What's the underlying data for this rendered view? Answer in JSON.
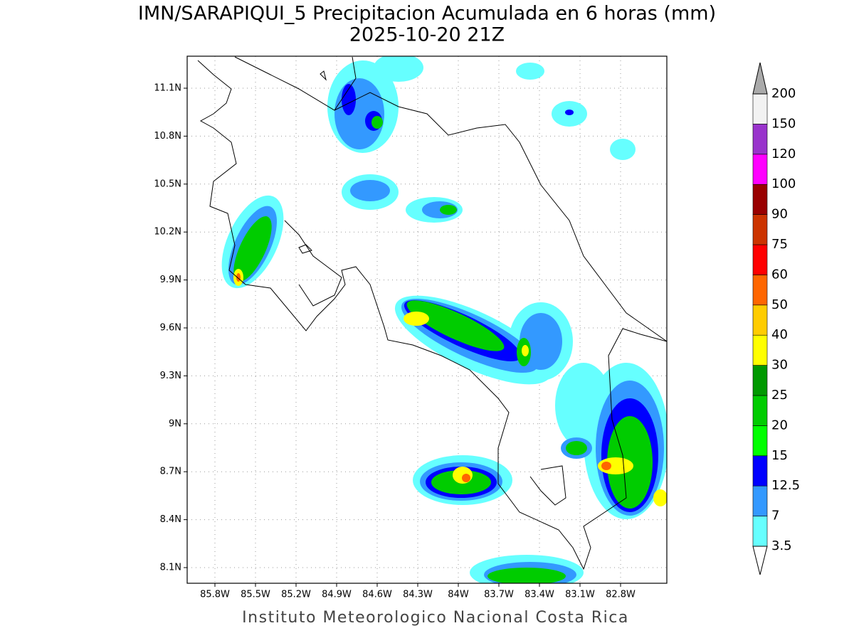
{
  "header": {
    "title": "IMN/SARAPIQUI_5 Precipitacion Acumulada en 6 horas (mm)",
    "subtitle": "2025-10-20 21Z"
  },
  "map": {
    "lon_labels": [
      "85.8W",
      "85.5W",
      "85.2W",
      "84.9W",
      "84.6W",
      "84.3W",
      "84W",
      "83.7W",
      "83.4W",
      "83.1W",
      "82.8W"
    ],
    "lat_labels": [
      "11.1N",
      "10.8N",
      "10.5N",
      "10.2N",
      "9.9N",
      "9.6N",
      "9.3N",
      "9N",
      "8.7N",
      "8.4N",
      "8.1N"
    ]
  },
  "colorbar": {
    "levels": [
      3.5,
      7,
      12.5,
      15,
      20,
      25,
      30,
      40,
      50,
      60,
      75,
      90,
      100,
      120,
      150,
      200
    ],
    "colors": [
      "#66ffff",
      "#3399ff",
      "#0000ff",
      "#00ff00",
      "#00cc00",
      "#009900",
      "#ffff00",
      "#ffcc00",
      "#ff6600",
      "#ff0000",
      "#cc3300",
      "#990000",
      "#ff00ff",
      "#9933cc",
      "#f2f2f2"
    ],
    "below_color": "#ffffff",
    "above_color": "#aaaaaa"
  },
  "footer": "Instituto Meteorologico Nacional Costa Rica"
}
